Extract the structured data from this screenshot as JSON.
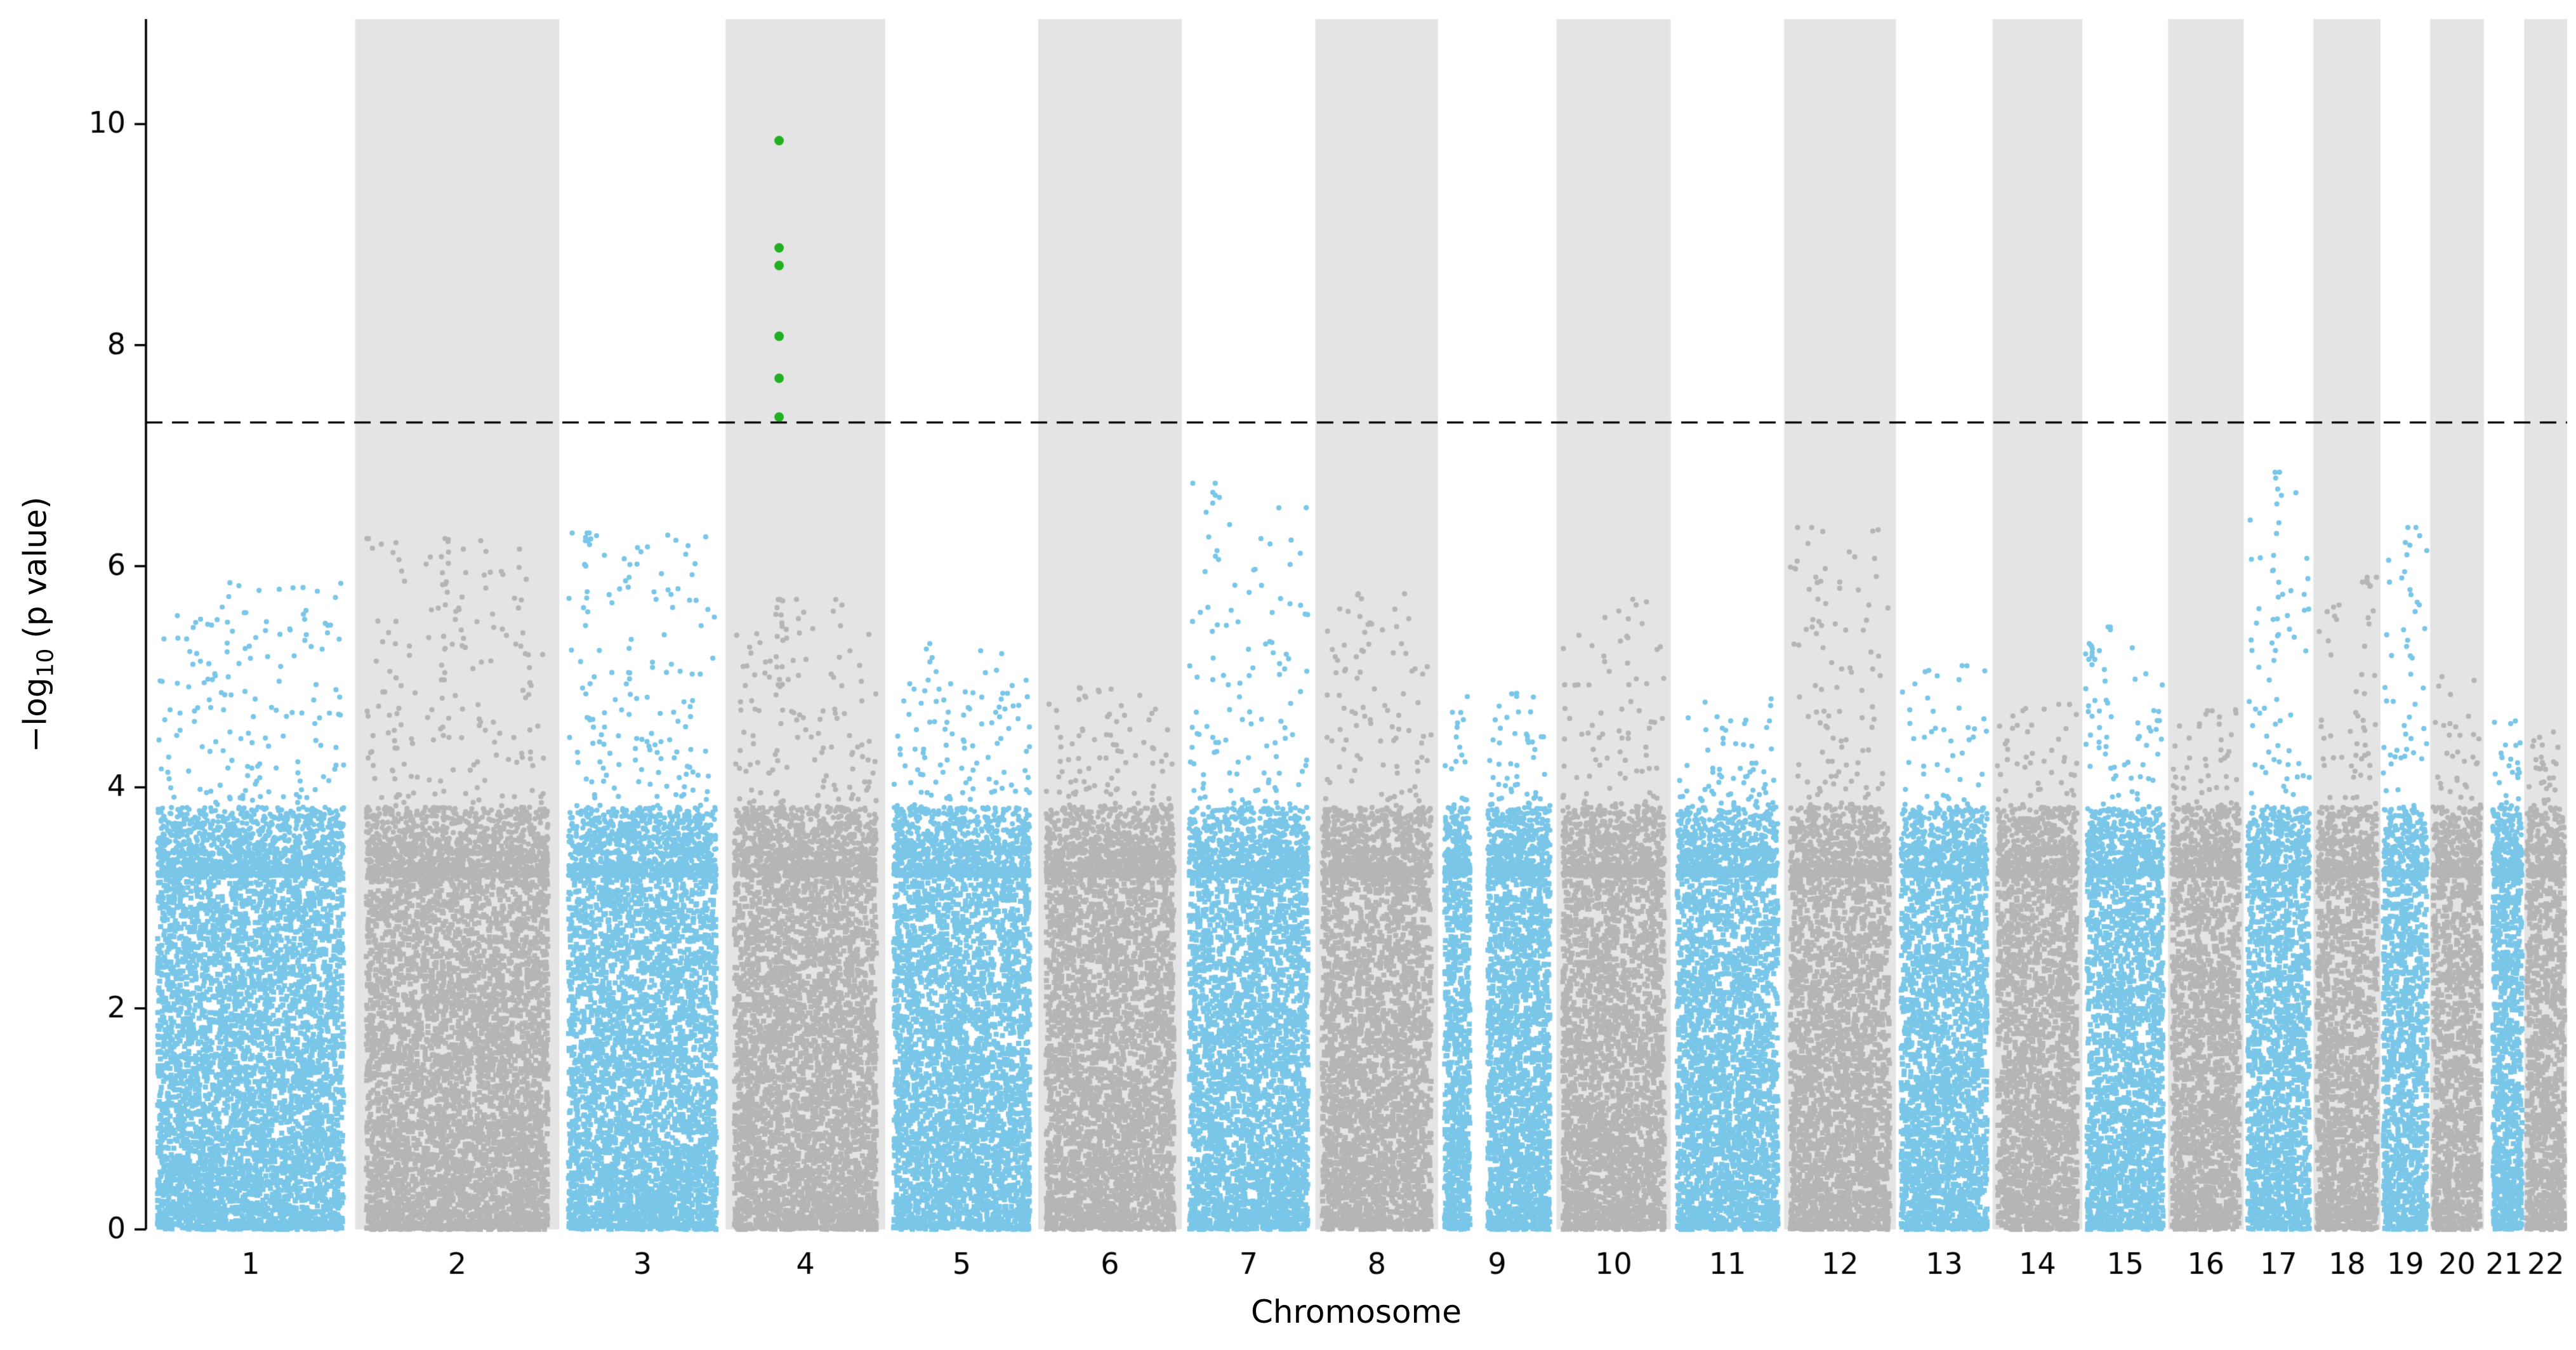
{
  "chart_data": {
    "type": "scatter",
    "variant": "manhattan-plot",
    "title": "",
    "xlabel": "Chromosome",
    "ylabel": {
      "prefix": "−log",
      "sub": "10",
      "suffix": " (p value)"
    },
    "ylabel_plain": "−log10 (p value)",
    "ylim": [
      0,
      10.95
    ],
    "yticks": [
      0,
      2,
      4,
      6,
      8,
      10
    ],
    "grid": false,
    "legend": "none",
    "significance_line": {
      "y": 7.3,
      "style": "dashed",
      "color": "#000000"
    },
    "colors": {
      "odd_chromosome_points": "#79c6e8",
      "even_chromosome_points": "#b5b5b5",
      "even_chromosome_band": "#e4e4e4",
      "significant_points": "#22b022",
      "axis": "#000000",
      "background": "#ffffff"
    },
    "chromosomes": [
      {
        "label": "1",
        "length": 249,
        "max": 5.85,
        "peaks": [],
        "gaps": []
      },
      {
        "label": "2",
        "length": 243,
        "max": 6.25,
        "peaks": [
          {
            "pos": 0.44,
            "top": 6.25,
            "n": 16
          },
          {
            "pos": 0.2,
            "top": 5.5,
            "n": 6
          }
        ],
        "gaps": []
      },
      {
        "label": "3",
        "length": 198,
        "max": 6.3,
        "peaks": [
          {
            "pos": 0.18,
            "top": 6.3,
            "n": 10
          },
          {
            "pos": 0.42,
            "top": 5.9,
            "n": 6
          }
        ],
        "gaps": []
      },
      {
        "label": "4",
        "length": 190,
        "max": 5.7,
        "peaks": [
          {
            "pos": 0.335,
            "top": 5.7,
            "n": 16
          }
        ],
        "gaps": []
      },
      {
        "label": "5",
        "length": 182,
        "max": 5.3,
        "peaks": [],
        "gaps": []
      },
      {
        "label": "6",
        "length": 171,
        "max": 4.9,
        "peaks": [],
        "gaps": []
      },
      {
        "label": "7",
        "length": 159,
        "max": 6.75,
        "peaks": [
          {
            "pos": 0.25,
            "top": 6.75,
            "n": 5
          },
          {
            "pos": 0.08,
            "top": 5.5,
            "n": 5
          }
        ],
        "gaps": []
      },
      {
        "label": "8",
        "length": 146,
        "max": 5.75,
        "peaks": [
          {
            "pos": 0.35,
            "top": 5.75,
            "n": 8
          }
        ],
        "gaps": []
      },
      {
        "label": "9",
        "length": 141,
        "max": 4.85,
        "peaks": [],
        "gaps": [
          [
            0.27,
            0.42
          ]
        ]
      },
      {
        "label": "10",
        "length": 136,
        "max": 5.7,
        "peaks": [],
        "gaps": []
      },
      {
        "label": "11",
        "length": 135,
        "max": 4.8,
        "peaks": [],
        "gaps": []
      },
      {
        "label": "12",
        "length": 133,
        "max": 6.35,
        "peaks": [
          {
            "pos": 0.12,
            "top": 6.35,
            "n": 3
          }
        ],
        "gaps": []
      },
      {
        "label": "13",
        "length": 115,
        "max": 5.1,
        "peaks": [],
        "gaps": []
      },
      {
        "label": "14",
        "length": 107,
        "max": 4.75,
        "peaks": [],
        "gaps": []
      },
      {
        "label": "15",
        "length": 102,
        "max": 5.45,
        "peaks": [
          {
            "pos": 0.08,
            "top": 5.3,
            "n": 14
          },
          {
            "pos": 0.3,
            "top": 5.45,
            "n": 4
          }
        ],
        "gaps": []
      },
      {
        "label": "16",
        "length": 90,
        "max": 4.7,
        "peaks": [],
        "gaps": []
      },
      {
        "label": "17",
        "length": 83,
        "max": 6.85,
        "peaks": [
          {
            "pos": 0.45,
            "top": 6.85,
            "n": 14
          }
        ],
        "gaps": []
      },
      {
        "label": "18",
        "length": 80,
        "max": 5.9,
        "peaks": [
          {
            "pos": 0.8,
            "top": 5.9,
            "n": 5
          }
        ],
        "gaps": []
      },
      {
        "label": "19",
        "length": 59,
        "max": 6.35,
        "peaks": [
          {
            "pos": 0.55,
            "top": 6.35,
            "n": 10
          }
        ],
        "gaps": []
      },
      {
        "label": "20",
        "length": 64,
        "max": 5.0,
        "peaks": [],
        "gaps": []
      },
      {
        "label": "21",
        "length": 48,
        "max": 4.6,
        "peaks": [],
        "gaps": [
          [
            0.0,
            0.22
          ]
        ]
      },
      {
        "label": "22",
        "length": 51,
        "max": 4.5,
        "peaks": [],
        "gaps": []
      }
    ],
    "significant_points": {
      "chromosome": "4",
      "relative_position": 0.335,
      "values": [
        7.35,
        7.7,
        8.08,
        8.72,
        8.88,
        9.85
      ]
    }
  }
}
